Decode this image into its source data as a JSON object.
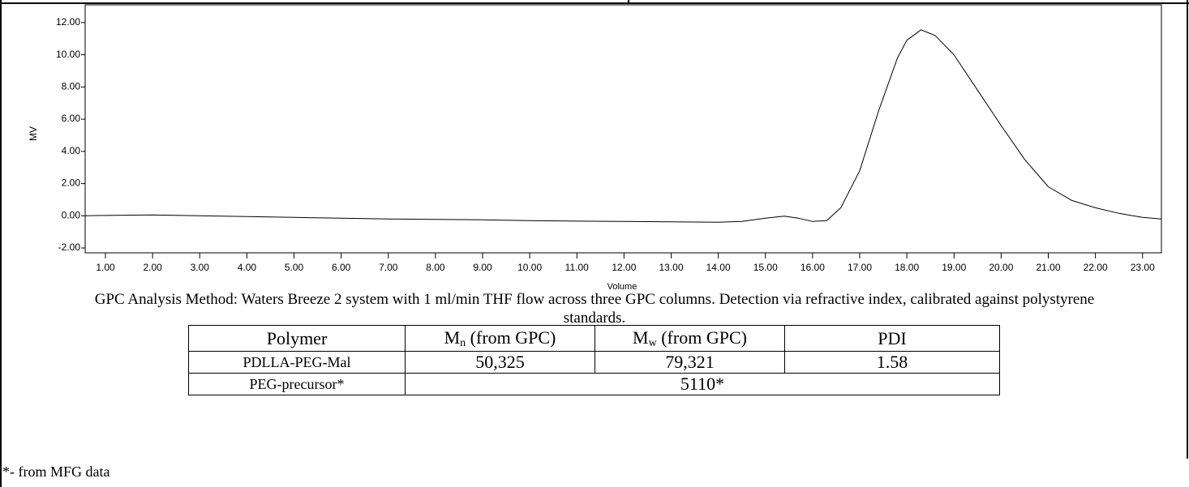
{
  "chart_data": {
    "type": "line",
    "y_label": "MV",
    "x_label": "Volume",
    "color": "#000000",
    "x": [
      0.57,
      1.0,
      2.0,
      3.0,
      4.0,
      5.0,
      6.0,
      7.0,
      8.0,
      9.0,
      10.0,
      11.0,
      12.0,
      13.0,
      14.0,
      14.5,
      15.0,
      15.4,
      15.7,
      16.0,
      16.3,
      16.6,
      17.0,
      17.4,
      17.8,
      18.0,
      18.3,
      18.6,
      19.0,
      19.5,
      20.0,
      20.5,
      21.0,
      21.5,
      22.0,
      22.5,
      23.0,
      23.4
    ],
    "values": [
      0.0,
      0.02,
      0.05,
      0.0,
      -0.05,
      -0.1,
      -0.15,
      -0.2,
      -0.22,
      -0.25,
      -0.3,
      -0.33,
      -0.35,
      -0.38,
      -0.4,
      -0.35,
      -0.15,
      -0.02,
      -0.15,
      -0.35,
      -0.3,
      0.5,
      2.8,
      6.5,
      9.8,
      10.9,
      11.55,
      11.2,
      10.0,
      7.8,
      5.6,
      3.5,
      1.8,
      0.95,
      0.5,
      0.15,
      -0.1,
      -0.2
    ],
    "xlim": [
      0.57,
      23.4
    ],
    "ylim": [
      -2.3,
      13.1
    ],
    "yticks": [
      {
        "value": -2,
        "label": "-2.00"
      },
      {
        "value": 0,
        "label": "0.00"
      },
      {
        "value": 2,
        "label": "2.00"
      },
      {
        "value": 4,
        "label": "4.00"
      },
      {
        "value": 6,
        "label": "6.00"
      },
      {
        "value": 8,
        "label": "8.00"
      },
      {
        "value": 10,
        "label": "10.00"
      },
      {
        "value": 12,
        "label": "12.00"
      }
    ],
    "xticks": [
      {
        "value": 1,
        "label": "1.00"
      },
      {
        "value": 2,
        "label": "2.00"
      },
      {
        "value": 3,
        "label": "3.00"
      },
      {
        "value": 4,
        "label": "4.00"
      },
      {
        "value": 5,
        "label": "5.00"
      },
      {
        "value": 6,
        "label": "6.00"
      },
      {
        "value": 7,
        "label": "7.00"
      },
      {
        "value": 8,
        "label": "8.00"
      },
      {
        "value": 9,
        "label": "9.00"
      },
      {
        "value": 10,
        "label": "10.00"
      },
      {
        "value": 11,
        "label": "11.00"
      },
      {
        "value": 12,
        "label": "12.00"
      },
      {
        "value": 13,
        "label": "13.00"
      },
      {
        "value": 14,
        "label": "14.00"
      },
      {
        "value": 15,
        "label": "15.00"
      },
      {
        "value": 16,
        "label": "16.00"
      },
      {
        "value": 17,
        "label": "17.00"
      },
      {
        "value": 18,
        "label": "18.00"
      },
      {
        "value": 19,
        "label": "19.00"
      },
      {
        "value": 20,
        "label": "20.00"
      },
      {
        "value": 21,
        "label": "21.00"
      },
      {
        "value": 22,
        "label": "22.00"
      },
      {
        "value": 23,
        "label": "23.00"
      }
    ]
  },
  "caption": "GPC Analysis Method: Waters Breeze 2 system with 1 ml/min THF flow across three GPC columns. Detection via refractive index, calibrated against polystyrene standards.",
  "table": {
    "header": [
      "Polymer",
      {
        "main": "M",
        "sub": "n",
        "rest": " (from GPC)"
      },
      {
        "main": "M",
        "sub": "w",
        "rest": " (from GPC)"
      },
      "PDI"
    ],
    "rows": [
      [
        "PDLLA-PEG-Mal",
        "50,325",
        "79,321",
        "1.58"
      ],
      [
        "PEG-precursor*",
        "5110*"
      ]
    ]
  },
  "footnote": "*- from MFG data"
}
